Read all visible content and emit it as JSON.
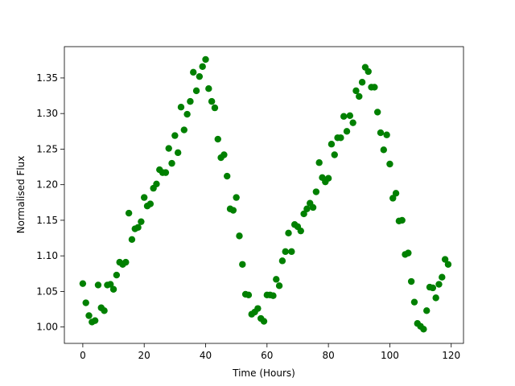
{
  "chart_data": {
    "type": "scatter",
    "x_label": "Time (Hours)",
    "y_label": "Normalised Flux",
    "x": [
      0,
      1,
      2,
      3,
      4,
      5,
      6,
      7,
      8,
      9,
      10,
      11,
      12,
      13,
      14,
      15,
      16,
      17,
      18,
      19,
      20,
      21,
      22,
      23,
      24,
      25,
      26,
      27,
      28,
      29,
      30,
      31,
      32,
      33,
      34,
      35,
      36,
      37,
      38,
      39,
      40,
      41,
      42,
      43,
      44,
      45,
      46,
      47,
      48,
      49,
      50,
      51,
      52,
      53,
      54,
      55,
      56,
      57,
      58,
      59,
      60,
      61,
      62,
      63,
      64,
      65,
      66,
      67,
      68,
      69,
      70,
      71,
      72,
      73,
      74,
      75,
      76,
      77,
      78,
      79,
      80,
      81,
      82,
      83,
      84,
      85,
      86,
      87,
      88,
      89,
      90,
      91,
      92,
      93,
      94,
      95,
      96,
      97,
      98,
      99,
      100,
      101,
      102,
      103,
      104,
      105,
      106,
      107,
      108,
      109,
      110,
      111,
      112,
      113,
      114,
      115,
      116,
      117,
      118,
      119
    ],
    "series": [
      {
        "color": "#008000",
        "values": [
          1.061,
          1.034,
          1.016,
          1.007,
          1.009,
          1.059,
          1.027,
          1.023,
          1.059,
          1.06,
          1.053,
          1.073,
          1.091,
          1.088,
          1.091,
          1.16,
          1.123,
          1.138,
          1.14,
          1.148,
          1.182,
          1.17,
          1.173,
          1.195,
          1.201,
          1.221,
          1.217,
          1.217,
          1.251,
          1.23,
          1.269,
          1.245,
          1.309,
          1.277,
          1.299,
          1.317,
          1.358,
          1.332,
          1.352,
          1.366,
          1.376,
          1.335,
          1.317,
          1.308,
          1.264,
          1.238,
          1.242,
          1.212,
          1.166,
          1.164,
          1.182,
          1.128,
          1.088,
          1.046,
          1.045,
          1.018,
          1.021,
          1.026,
          1.012,
          1.008,
          1.045,
          1.045,
          1.044,
          1.067,
          1.058,
          1.093,
          1.106,
          1.132,
          1.106,
          1.144,
          1.141,
          1.135,
          1.159,
          1.166,
          1.174,
          1.168,
          1.19,
          1.231,
          1.21,
          1.204,
          1.209,
          1.257,
          1.242,
          1.266,
          1.266,
          1.296,
          1.275,
          1.297,
          1.287,
          1.332,
          1.324,
          1.344,
          1.365,
          1.359,
          1.337,
          1.337,
          1.302,
          1.273,
          1.249,
          1.27,
          1.229,
          1.181,
          1.188,
          1.149,
          1.15,
          1.102,
          1.104,
          1.064,
          1.035,
          1.005,
          1.001,
          0.997,
          1.023,
          1.056,
          1.055,
          1.041,
          1.06,
          1.07,
          1.095,
          1.088
        ]
      }
    ],
    "xlim": [
      -6,
      124
    ],
    "ylim": [
      0.977,
      1.394
    ],
    "xticks": [
      0,
      20,
      40,
      60,
      80,
      100,
      120
    ],
    "yticks": [
      {
        "value": 1,
        "label": "1.00"
      },
      1.05,
      {
        "value": 1.1,
        "label": "1.10"
      },
      1.15,
      {
        "value": 1.2,
        "label": "1.20"
      },
      1.25,
      {
        "value": 1.3,
        "label": "1.30"
      },
      1.35
    ],
    "grid": false
  }
}
